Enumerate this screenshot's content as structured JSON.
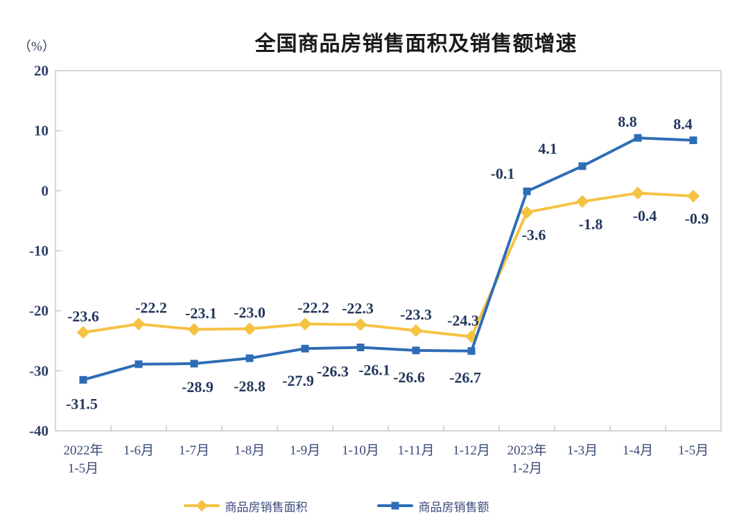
{
  "chart_data": {
    "type": "line",
    "title": "全国商品房销售面积及销售额增速",
    "unit_label": "（%）",
    "categories": [
      [
        "2022年",
        "1-5月"
      ],
      [
        "1-6月"
      ],
      [
        "1-7月"
      ],
      [
        "1-8月"
      ],
      [
        "1-9月"
      ],
      [
        "1-10月"
      ],
      [
        "1-11月"
      ],
      [
        "1-12月"
      ],
      [
        "2023年",
        "1-2月"
      ],
      [
        "1-3月"
      ],
      [
        "1-4月"
      ],
      [
        "1-5月"
      ]
    ],
    "ylim": [
      -40,
      20
    ],
    "yticks": [
      20,
      10,
      0,
      -10,
      -20,
      -30,
      -40
    ],
    "grid": false,
    "legend_position": "bottom",
    "axis_color": "#c9c9c9",
    "series": [
      {
        "name": "商品房销售面积",
        "id": "sales-area",
        "color": "#F5C242",
        "marker": "diamond",
        "values": [
          -23.6,
          -22.2,
          -23.1,
          -23.0,
          -22.2,
          -22.3,
          -23.3,
          -24.3,
          -3.6,
          -1.8,
          -0.4,
          -0.9
        ],
        "label_dx": [
          0,
          18,
          10,
          0,
          12,
          -4,
          0,
          -12,
          10,
          12,
          10,
          5
        ],
        "label_dy": [
          -16,
          -16,
          -16,
          -16,
          -16,
          -16,
          -16,
          -16,
          40,
          40,
          40,
          40
        ]
      },
      {
        "name": "商品房销售额",
        "id": "sales-amount",
        "color": "#2E6DB5",
        "marker": "square",
        "values": [
          -31.5,
          -28.9,
          -28.8,
          -27.9,
          -26.3,
          -26.1,
          -26.6,
          -26.7,
          -0.1,
          4.1,
          8.8,
          8.4
        ],
        "label_dx": [
          -2,
          85,
          80,
          70,
          40,
          20,
          -10,
          -9,
          -35,
          -50,
          -15,
          -15
        ],
        "label_dy": [
          42,
          40,
          40,
          40,
          40,
          40,
          46,
          46,
          -18,
          -18,
          -16,
          -16
        ]
      }
    ]
  }
}
